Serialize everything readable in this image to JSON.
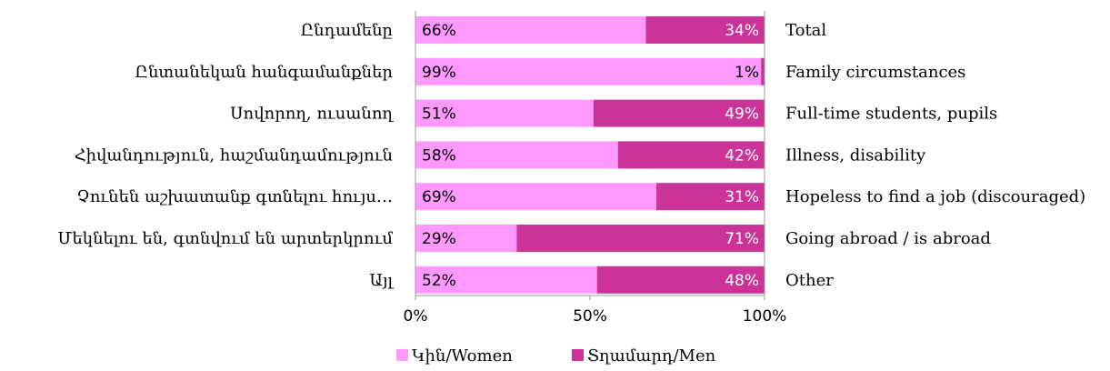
{
  "chart_data": {
    "type": "bar",
    "orientation": "horizontal",
    "stacked": "percent",
    "categories_left": [
      "Ընդամենը",
      "Ընտանեկան հանգամանքներ",
      "Սովորող, ուսանող",
      "Հիվանդություն, հաշմանդամություն",
      "Չունեն աշխատանք գտնելու հույս…",
      "Մեկնելու են, գտնվում են արտերկրում",
      "Այլ"
    ],
    "categories_right": [
      "Total",
      "Family circumstances",
      "Full-time students, pupils",
      "Illness, disability",
      "Hopeless to find a job (discouraged)",
      "Going abroad /  is abroad",
      "Other"
    ],
    "series": [
      {
        "name": "Կին/Women",
        "color": "#ff99ff",
        "values": [
          66,
          99,
          51,
          58,
          69,
          29,
          52
        ],
        "labels": [
          "66%",
          "99%",
          "51%",
          "58%",
          "69%",
          "29%",
          "52%"
        ]
      },
      {
        "name": "Տղամարդ/Men",
        "color": "#cc3399",
        "values": [
          34,
          1,
          49,
          42,
          31,
          71,
          48
        ],
        "labels": [
          "34%",
          "1%",
          "49%",
          "42%",
          "31%",
          "71%",
          "48%"
        ]
      }
    ],
    "xaxis": {
      "range": [
        0,
        100
      ],
      "ticks": [
        "0%",
        "50%",
        "100%"
      ]
    },
    "legend": "bottom",
    "grid": false
  }
}
